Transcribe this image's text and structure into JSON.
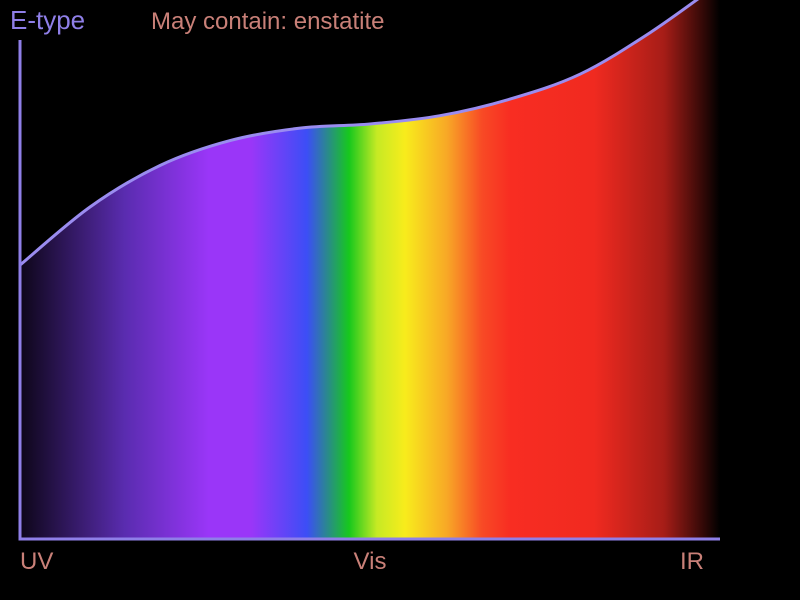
{
  "chart_data": {
    "type": "area",
    "title": "E-type",
    "subtitle": "May contain: enstatite",
    "xlabel": "",
    "ylabel": "",
    "x_tick_labels": [
      "UV",
      "Vis",
      "IR"
    ],
    "x_tick_positions": [
      0,
      0.5,
      1
    ],
    "xlim": [
      0,
      1
    ],
    "ylim": [
      0,
      1
    ],
    "grid": false,
    "legend": "none",
    "series": [
      {
        "x": [
          0,
          0.1,
          0.2,
          0.3,
          0.4,
          0.5,
          0.6,
          0.7,
          0.8,
          0.9,
          1.0
        ],
        "values": [
          0.33,
          0.4,
          0.45,
          0.48,
          0.495,
          0.5,
          0.51,
          0.53,
          0.56,
          0.61,
          0.67
        ]
      }
    ],
    "fill": "visible spectrum gradient (UV violet → blue → green → yellow → orange → red → IR dark)"
  },
  "colors": {
    "background": "#000000",
    "axis": "#8f7fe8",
    "curve": "#9a8cf0",
    "title": "#8f7fe8",
    "subtitle": "#c98078",
    "tick_label": "#c98078",
    "spectrum_stops": [
      "#0d0618",
      "#5a2cb0",
      "#9a36f8",
      "#9a36f8",
      "#3c4ef6",
      "#17c81d",
      "#c6ea24",
      "#f8ec1c",
      "#f8a826",
      "#f84a25",
      "#f82d22",
      "#f02a20",
      "#a61d17",
      "#000000"
    ]
  }
}
